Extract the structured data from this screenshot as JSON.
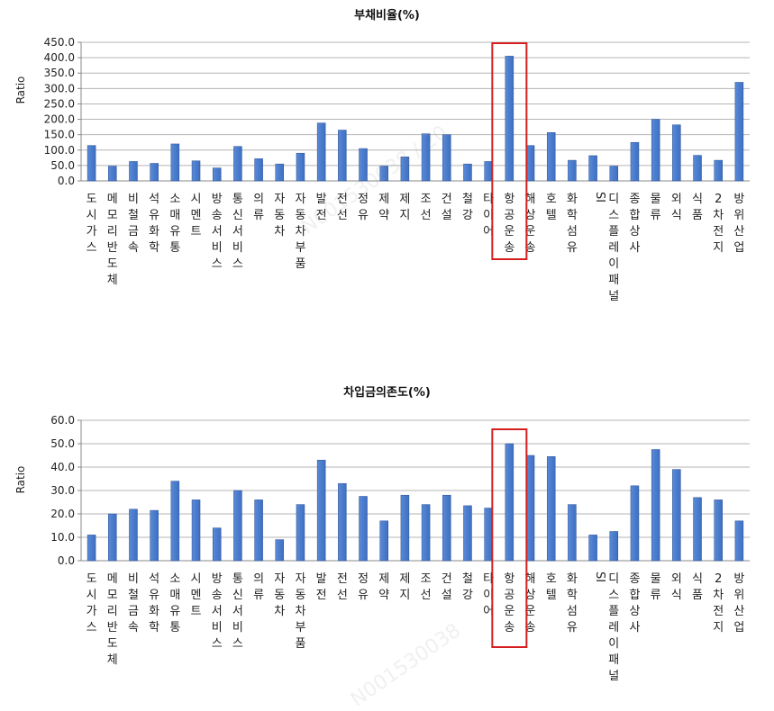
{
  "colors": {
    "bar": "#3d6fc3",
    "bar_edge": "#2a4f93",
    "highlight": "#d42020",
    "axis": "#888888",
    "grid": "#b5b5b5"
  },
  "watermark": {
    "text1": "N001530038 / 20",
    "text2": "N001530038"
  },
  "chart_data": [
    {
      "type": "bar",
      "title": "부채비율(%)",
      "xlabel": "",
      "ylabel": "Ratio",
      "ylim": [
        0,
        450
      ],
      "ytick_step": 50,
      "yticks": [
        "0.0",
        "50.0",
        "100.0",
        "150.0",
        "200.0",
        "250.0",
        "300.0",
        "350.0",
        "400.0",
        "450.0"
      ],
      "grid": true,
      "highlight_category": "항공운송",
      "categories": [
        "도시가스",
        "메모리반도체",
        "비철금속",
        "석유화학",
        "소매유통",
        "시멘트",
        "방송서비스",
        "통신서비스",
        "의류",
        "자동차",
        "자동차부품",
        "발전",
        "전선",
        "정유",
        "제약",
        "제지",
        "조선",
        "건설",
        "철강",
        "타이어",
        "항공운송",
        "해상운송",
        "호텔",
        "화학섬유",
        "SI",
        "디스플레이패널",
        "종합상사",
        "물류",
        "외식",
        "식품",
        "2차전지",
        "방위산업"
      ],
      "values": [
        115,
        48,
        63,
        57,
        120,
        65,
        42,
        112,
        72,
        55,
        90,
        188,
        165,
        105,
        48,
        78,
        153,
        150,
        55,
        63,
        405,
        115,
        157,
        67,
        82,
        48,
        125,
        200,
        182,
        83,
        67,
        320
      ]
    },
    {
      "type": "bar",
      "title": "차입금의존도(%)",
      "xlabel": "",
      "ylabel": "Ratio",
      "ylim": [
        0,
        60
      ],
      "ytick_step": 10,
      "yticks": [
        "0.0",
        "10.0",
        "20.0",
        "30.0",
        "40.0",
        "50.0",
        "60.0"
      ],
      "grid": true,
      "highlight_category": "항공운송",
      "categories": [
        "도시가스",
        "메모리반도체",
        "비철금속",
        "석유화학",
        "소매유통",
        "시멘트",
        "방송서비스",
        "통신서비스",
        "의류",
        "자동차",
        "자동차부품",
        "발전",
        "전선",
        "정유",
        "제약",
        "제지",
        "조선",
        "건설",
        "철강",
        "타이어",
        "항공운송",
        "해상운송",
        "호텔",
        "화학섬유",
        "SI",
        "디스플레이패널",
        "종합상사",
        "물류",
        "외식",
        "식품",
        "2차전지",
        "방위산업"
      ],
      "values": [
        11,
        20,
        22,
        21.5,
        34,
        26,
        14,
        30,
        26,
        9,
        24,
        43,
        33,
        27.5,
        17,
        28,
        24,
        28,
        23.5,
        22.5,
        50,
        45,
        44.5,
        24,
        11,
        12.5,
        32,
        47.5,
        39,
        27,
        26,
        17
      ]
    }
  ]
}
